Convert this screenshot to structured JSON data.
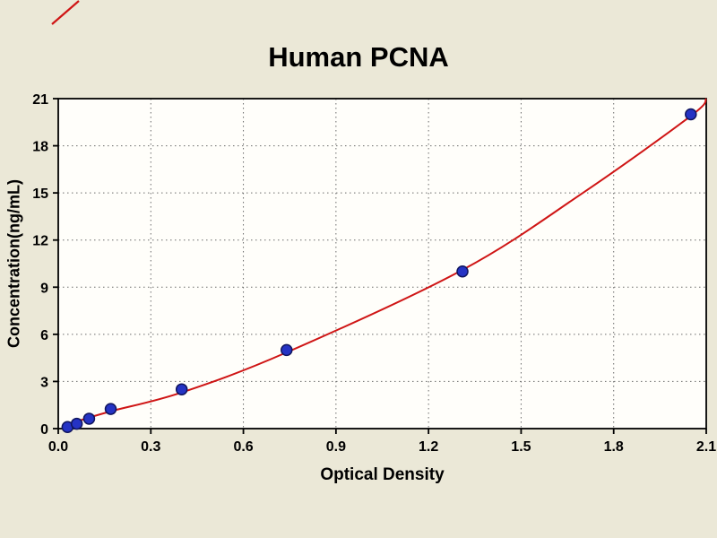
{
  "figure": {
    "background_color": "#ebe8d7",
    "plot_background_color": "#fffefa"
  },
  "chart_data": {
    "type": "scatter",
    "title": "Human PCNA",
    "xlabel": "Optical Density",
    "ylabel": "Concentration(ng/mL)",
    "xlim": [
      0.0,
      2.1
    ],
    "ylim": [
      0,
      21
    ],
    "x_ticks": [
      0.0,
      0.3,
      0.6,
      0.9,
      1.2,
      1.5,
      1.8,
      2.1
    ],
    "x_tick_labels": [
      "0.0",
      "0.3",
      "0.6",
      "0.9",
      "1.2",
      "1.5",
      "1.8",
      "2.1"
    ],
    "y_ticks": [
      0,
      3,
      6,
      9,
      12,
      15,
      18,
      21
    ],
    "y_tick_labels": [
      "0",
      "3",
      "6",
      "9",
      "12",
      "15",
      "18",
      "21"
    ],
    "grid": "dotted",
    "legend": "none",
    "colors": {
      "curve": "#cf1515",
      "marker_fill": "#2533c4",
      "marker_edge": "#10155e",
      "grid": "#6b6b6b",
      "frame": "#000000"
    },
    "series": [
      {
        "name": "standard-points",
        "type": "scatter",
        "x": [
          0.03,
          0.06,
          0.1,
          0.17,
          0.4,
          0.74,
          1.31,
          2.05
        ],
        "y": [
          0.1,
          0.31,
          0.63,
          1.25,
          2.5,
          5.0,
          10.0,
          20.0
        ]
      },
      {
        "name": "fitted-curve",
        "type": "line",
        "x": [
          0.015,
          0.06,
          0.17,
          0.4,
          0.74,
          1.31,
          1.7,
          2.05,
          2.1
        ],
        "y": [
          0.02,
          0.45,
          1.1,
          2.3,
          4.85,
          10.1,
          15.0,
          19.9,
          21.0
        ]
      }
    ]
  }
}
